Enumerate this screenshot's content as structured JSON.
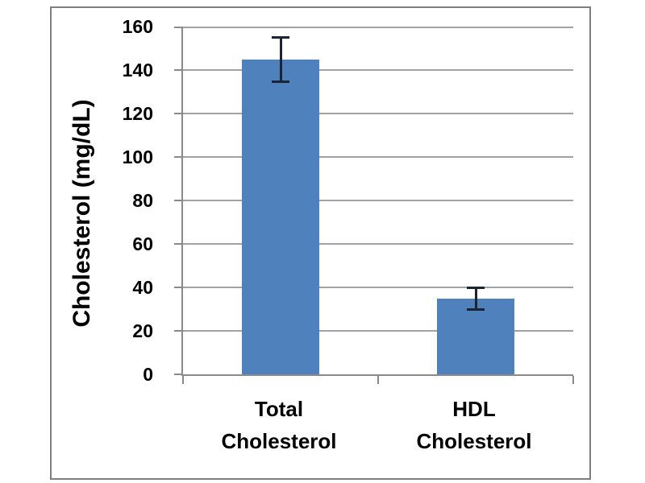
{
  "chart_data": {
    "type": "bar",
    "title": "",
    "ylabel": "Cholesterol (mg/dL)",
    "xlabel": "",
    "categories": [
      "Total Cholesterol",
      "HDL Cholesterol"
    ],
    "category_lines": [
      [
        "Total",
        "Cholesterol"
      ],
      [
        "HDL",
        "Cholesterol"
      ]
    ],
    "values": [
      145,
      35
    ],
    "error_bars": [
      {
        "low": 134.5,
        "high": 155
      },
      {
        "low": 30,
        "high": 40
      }
    ],
    "ylim": [
      0,
      160
    ],
    "ytick_step": 20,
    "yticks": [
      0,
      20,
      40,
      60,
      80,
      100,
      120,
      140,
      160
    ],
    "grid": true,
    "legend_position": "none",
    "colors": {
      "bar_fill": "#4F81BD",
      "gridline": "#A3A3A3",
      "axis_line": "#8A8A8A",
      "error_bar": "#1B2433",
      "text": "#000000",
      "frame_border": "#7F7F7F",
      "background": "#FFFFFF"
    }
  }
}
